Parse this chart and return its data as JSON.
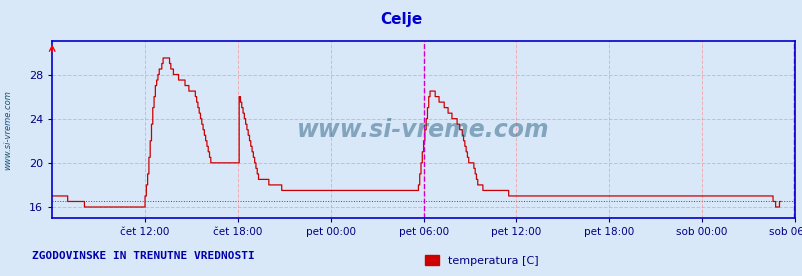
{
  "title": "Celje",
  "title_color": "#0000cc",
  "title_fontsize": 11,
  "bg_color": "#d8e8f8",
  "plot_bg_color": "#d8e8f8",
  "line_color": "#cc0000",
  "grid_color": "#ff8888",
  "axis_color": "#0000cc",
  "tick_color": "#000080",
  "watermark": "www.si-vreme.com",
  "watermark_color": "#1a5276",
  "ylabel_left": "www.si-vreme.com",
  "xlabel_labels": [
    "čet 12:00",
    "čet 18:00",
    "pet 00:00",
    "pet 06:00",
    "pet 12:00",
    "pet 18:00",
    "sob 00:00",
    "sob 06:00"
  ],
  "yticks": [
    16,
    20,
    24,
    28
  ],
  "ylim": [
    15.0,
    31.0
  ],
  "xlim": [
    0,
    576
  ],
  "vline_x": 288,
  "vline_color": "#cc00cc",
  "end_vline_x": 575,
  "footer_text": "ZGODOVINSKE IN TRENUTNE VREDNOSTI",
  "legend_label": "temperatura [C]",
  "legend_color": "#cc0000",
  "xtick_positions": [
    72,
    144,
    216,
    288,
    360,
    432,
    504,
    576
  ],
  "temp_data": [
    17.0,
    17.0,
    17.0,
    17.0,
    17.0,
    17.0,
    17.0,
    17.0,
    17.0,
    17.0,
    17.0,
    17.0,
    16.5,
    16.5,
    16.5,
    16.5,
    16.5,
    16.5,
    16.5,
    16.5,
    16.5,
    16.5,
    16.5,
    16.5,
    16.5,
    16.0,
    16.0,
    16.0,
    16.0,
    16.0,
    16.0,
    16.0,
    16.0,
    16.0,
    16.0,
    16.0,
    16.0,
    16.0,
    16.0,
    16.0,
    16.0,
    16.0,
    16.0,
    16.0,
    16.0,
    16.0,
    16.0,
    16.0,
    16.0,
    16.0,
    16.0,
    16.0,
    16.0,
    16.0,
    16.0,
    16.0,
    16.0,
    16.0,
    16.0,
    16.0,
    16.0,
    16.0,
    16.0,
    16.0,
    16.0,
    16.0,
    16.0,
    16.0,
    16.0,
    16.0,
    16.0,
    16.0,
    17.0,
    18.0,
    19.0,
    20.5,
    22.0,
    23.5,
    25.0,
    26.0,
    27.0,
    27.5,
    28.0,
    28.5,
    28.5,
    29.0,
    29.5,
    29.5,
    29.5,
    29.5,
    29.5,
    29.0,
    28.5,
    28.5,
    28.0,
    28.0,
    28.0,
    28.0,
    27.5,
    27.5,
    27.5,
    27.5,
    27.5,
    27.0,
    27.0,
    27.0,
    26.5,
    26.5,
    26.5,
    26.5,
    26.5,
    26.0,
    25.5,
    25.0,
    24.5,
    24.0,
    23.5,
    23.0,
    22.5,
    22.0,
    21.5,
    21.0,
    20.5,
    20.0,
    20.0,
    20.0,
    20.0,
    20.0,
    20.0,
    20.0,
    20.0,
    20.0,
    20.0,
    20.0,
    20.0,
    20.0,
    20.0,
    20.0,
    20.0,
    20.0,
    20.0,
    20.0,
    20.0,
    20.0,
    20.0,
    26.0,
    25.5,
    25.0,
    24.5,
    24.0,
    23.5,
    23.0,
    22.5,
    22.0,
    21.5,
    21.0,
    20.5,
    20.0,
    19.5,
    19.0,
    18.5,
    18.5,
    18.5,
    18.5,
    18.5,
    18.5,
    18.5,
    18.5,
    18.0,
    18.0,
    18.0,
    18.0,
    18.0,
    18.0,
    18.0,
    18.0,
    18.0,
    18.0,
    17.5,
    17.5,
    17.5,
    17.5,
    17.5,
    17.5,
    17.5,
    17.5,
    17.5,
    17.5,
    17.5,
    17.5,
    17.5,
    17.5,
    17.5,
    17.5,
    17.5,
    17.5,
    17.5,
    17.5,
    17.5,
    17.5,
    17.5,
    17.5,
    17.5,
    17.5,
    17.5,
    17.5,
    17.5,
    17.5,
    17.5,
    17.5,
    17.5,
    17.5,
    17.5,
    17.5,
    17.5,
    17.5,
    17.5,
    17.5,
    17.5,
    17.5,
    17.5,
    17.5,
    17.5,
    17.5,
    17.5,
    17.5,
    17.5,
    17.5,
    17.5,
    17.5,
    17.5,
    17.5,
    17.5,
    17.5,
    17.5,
    17.5,
    17.5,
    17.5,
    17.5,
    17.5,
    17.5,
    17.5,
    17.5,
    17.5,
    17.5,
    17.5,
    17.5,
    17.5,
    17.5,
    17.5,
    17.5,
    17.5,
    17.5,
    17.5,
    17.5,
    17.5,
    17.5,
    17.5,
    17.5,
    17.5,
    17.5,
    17.5,
    17.5,
    17.5,
    17.5,
    17.5,
    17.5,
    17.5,
    17.5,
    17.5,
    17.5,
    17.5,
    17.5,
    17.5,
    17.5,
    17.5,
    17.5,
    17.5,
    17.5,
    17.5,
    17.5,
    17.5,
    17.5,
    17.5,
    18.0,
    19.0,
    20.0,
    21.0,
    22.0,
    23.0,
    24.0,
    25.0,
    26.0,
    26.5,
    26.5,
    26.5,
    26.5,
    26.0,
    26.0,
    26.0,
    25.5,
    25.5,
    25.5,
    25.5,
    25.0,
    25.0,
    25.0,
    24.5,
    24.5,
    24.5,
    24.0,
    24.0,
    24.0,
    24.0,
    23.5,
    23.5,
    23.0,
    23.0,
    22.5,
    22.0,
    21.5,
    21.0,
    20.5,
    20.0,
    20.0,
    20.0,
    20.0,
    19.5,
    19.0,
    18.5,
    18.0,
    18.0,
    18.0,
    18.0,
    17.5,
    17.5,
    17.5,
    17.5,
    17.5,
    17.5,
    17.5,
    17.5,
    17.5,
    17.5,
    17.5,
    17.5,
    17.5,
    17.5,
    17.5,
    17.5,
    17.5,
    17.5,
    17.5,
    17.5,
    17.0,
    17.0,
    17.0,
    17.0,
    17.0,
    17.0,
    17.0,
    17.0,
    17.0,
    17.0,
    17.0,
    17.0,
    17.0,
    17.0,
    17.0,
    17.0,
    17.0,
    17.0,
    17.0,
    17.0,
    17.0,
    17.0,
    17.0,
    17.0,
    17.0,
    17.0,
    17.0,
    17.0,
    17.0,
    17.0,
    17.0,
    17.0,
    17.0,
    17.0,
    17.0,
    17.0,
    17.0,
    17.0,
    17.0,
    17.0,
    17.0,
    17.0,
    17.0,
    17.0,
    17.0,
    17.0,
    17.0,
    17.0,
    17.0,
    17.0,
    17.0,
    17.0,
    17.0,
    17.0,
    17.0,
    17.0,
    17.0,
    17.0,
    17.0,
    17.0,
    17.0,
    17.0,
    17.0,
    17.0,
    17.0,
    17.0,
    17.0,
    17.0,
    17.0,
    17.0,
    17.0,
    17.0,
    17.0,
    17.0,
    17.0,
    17.0,
    17.0,
    17.0,
    17.0,
    17.0,
    17.0,
    17.0,
    17.0,
    17.0,
    17.0,
    17.0,
    17.0,
    17.0,
    17.0,
    17.0,
    17.0,
    17.0,
    17.0,
    17.0,
    17.0,
    17.0,
    17.0,
    17.0,
    17.0,
    17.0,
    17.0,
    17.0,
    17.0,
    17.0,
    17.0,
    17.0,
    17.0,
    17.0,
    17.0,
    17.0,
    17.0,
    17.0,
    17.0,
    17.0,
    17.0,
    17.0,
    17.0,
    17.0,
    17.0,
    17.0,
    17.0,
    17.0,
    17.0,
    17.0,
    17.0,
    17.0,
    17.0,
    17.0,
    17.0,
    17.0,
    17.0,
    17.0,
    17.0,
    17.0,
    17.0,
    17.0,
    17.0,
    17.0,
    17.0,
    17.0,
    17.0,
    17.0,
    17.0,
    17.0,
    17.0,
    17.0,
    17.0,
    17.0,
    17.0,
    17.0,
    17.0,
    17.0,
    17.0,
    17.0,
    17.0,
    17.0,
    17.0,
    17.0,
    17.0,
    17.0,
    17.0,
    17.0,
    17.0,
    17.0,
    17.0,
    17.0,
    17.0,
    17.0,
    17.0,
    17.0,
    17.0,
    17.0,
    17.0,
    17.0,
    17.0,
    17.0,
    17.0,
    17.0,
    17.0,
    17.0,
    17.0,
    17.0,
    17.0,
    17.0,
    17.0,
    17.0,
    17.0,
    17.0,
    17.0,
    17.0,
    17.0,
    17.0,
    17.0,
    17.0,
    17.0,
    17.0,
    17.0,
    17.0,
    17.0,
    17.0,
    17.0,
    17.0,
    17.0,
    17.0,
    17.0,
    16.5,
    16.5,
    16.0,
    16.0,
    16.0,
    16.5,
    16.5
  ]
}
